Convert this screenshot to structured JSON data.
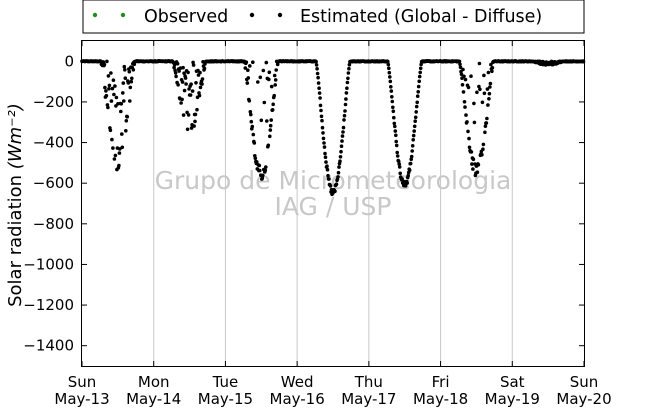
{
  "chart_data": {
    "type": "scatter",
    "ylabel": "Solar radiation",
    "ylabel_unit": "(Wm⁻²)",
    "ylim": [
      -1500,
      100
    ],
    "yticks": [
      0,
      -200,
      -400,
      -600,
      -800,
      -1000,
      -1200,
      -1400
    ],
    "ytick_labels": [
      "0",
      "−200",
      "−400",
      "−600",
      "−800",
      "−1000",
      "−1200",
      "−1400"
    ],
    "x_start": "2012-05-13",
    "x_end": "2012-05-20",
    "xtick_labels": [
      {
        "day": "Sun",
        "date": "May-13"
      },
      {
        "day": "Mon",
        "date": "May-14"
      },
      {
        "day": "Tue",
        "date": "May-15"
      },
      {
        "day": "Wed",
        "date": "May-16"
      },
      {
        "day": "Thu",
        "date": "May-17"
      },
      {
        "day": "Fri",
        "date": "May-18"
      },
      {
        "day": "Sat",
        "date": "May-19"
      },
      {
        "day": "Sun",
        "date": "May-20"
      }
    ],
    "grid": "vertical",
    "legend": "top",
    "series": [
      {
        "name": "Observed",
        "color": "#228b22",
        "values": []
      },
      {
        "name": "Estimated (Global - Diffuse)",
        "color": "#000000",
        "daily_min": [
          {
            "date": "2012-05-13",
            "min": -520,
            "pattern": "cloudy"
          },
          {
            "date": "2012-05-14",
            "min": -340,
            "pattern": "cloudy"
          },
          {
            "date": "2012-05-15",
            "min": -580,
            "pattern": "partly-cloudy"
          },
          {
            "date": "2012-05-16",
            "min": -650,
            "pattern": "clear"
          },
          {
            "date": "2012-05-17",
            "min": -610,
            "pattern": "clear"
          },
          {
            "date": "2012-05-18",
            "min": -560,
            "pattern": "partly-cloudy"
          },
          {
            "date": "2012-05-19",
            "min": -20,
            "pattern": "overcast"
          }
        ]
      }
    ]
  },
  "watermark": {
    "line1": "Grupo de Micrometeorologia",
    "line2": "IAG / USP"
  }
}
